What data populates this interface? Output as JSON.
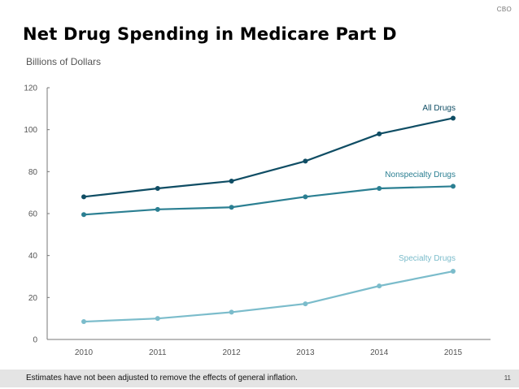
{
  "header": {
    "org": "CBO",
    "title": "Net Drug Spending in Medicare Part D",
    "subtitle": "Billions of Dollars"
  },
  "footer": {
    "note": "Estimates have not been adjusted to remove the effects of general inflation.",
    "page_number": "11"
  },
  "chart_data": {
    "type": "line",
    "title": "Net Drug Spending in Medicare Part D",
    "xlabel": "",
    "ylabel": "Billions of Dollars",
    "x": [
      "2010",
      "2011",
      "2012",
      "2013",
      "2014",
      "2015"
    ],
    "ylim": [
      0,
      120
    ],
    "yticks": [
      0,
      20,
      40,
      60,
      80,
      100,
      120
    ],
    "grid": false,
    "legend": "inline labels near right end of each line",
    "series": [
      {
        "name": "All Drugs",
        "color": "#0f4d64",
        "values": [
          68,
          72,
          75.5,
          85,
          98,
          105.5
        ]
      },
      {
        "name": "Nonspecialty Drugs",
        "color": "#2b7f92",
        "values": [
          59.5,
          62,
          63,
          68,
          72,
          73
        ]
      },
      {
        "name": "Specialty Drugs",
        "color": "#7bbccb",
        "values": [
          8.5,
          10,
          13,
          17,
          25.5,
          32.5
        ]
      }
    ]
  }
}
